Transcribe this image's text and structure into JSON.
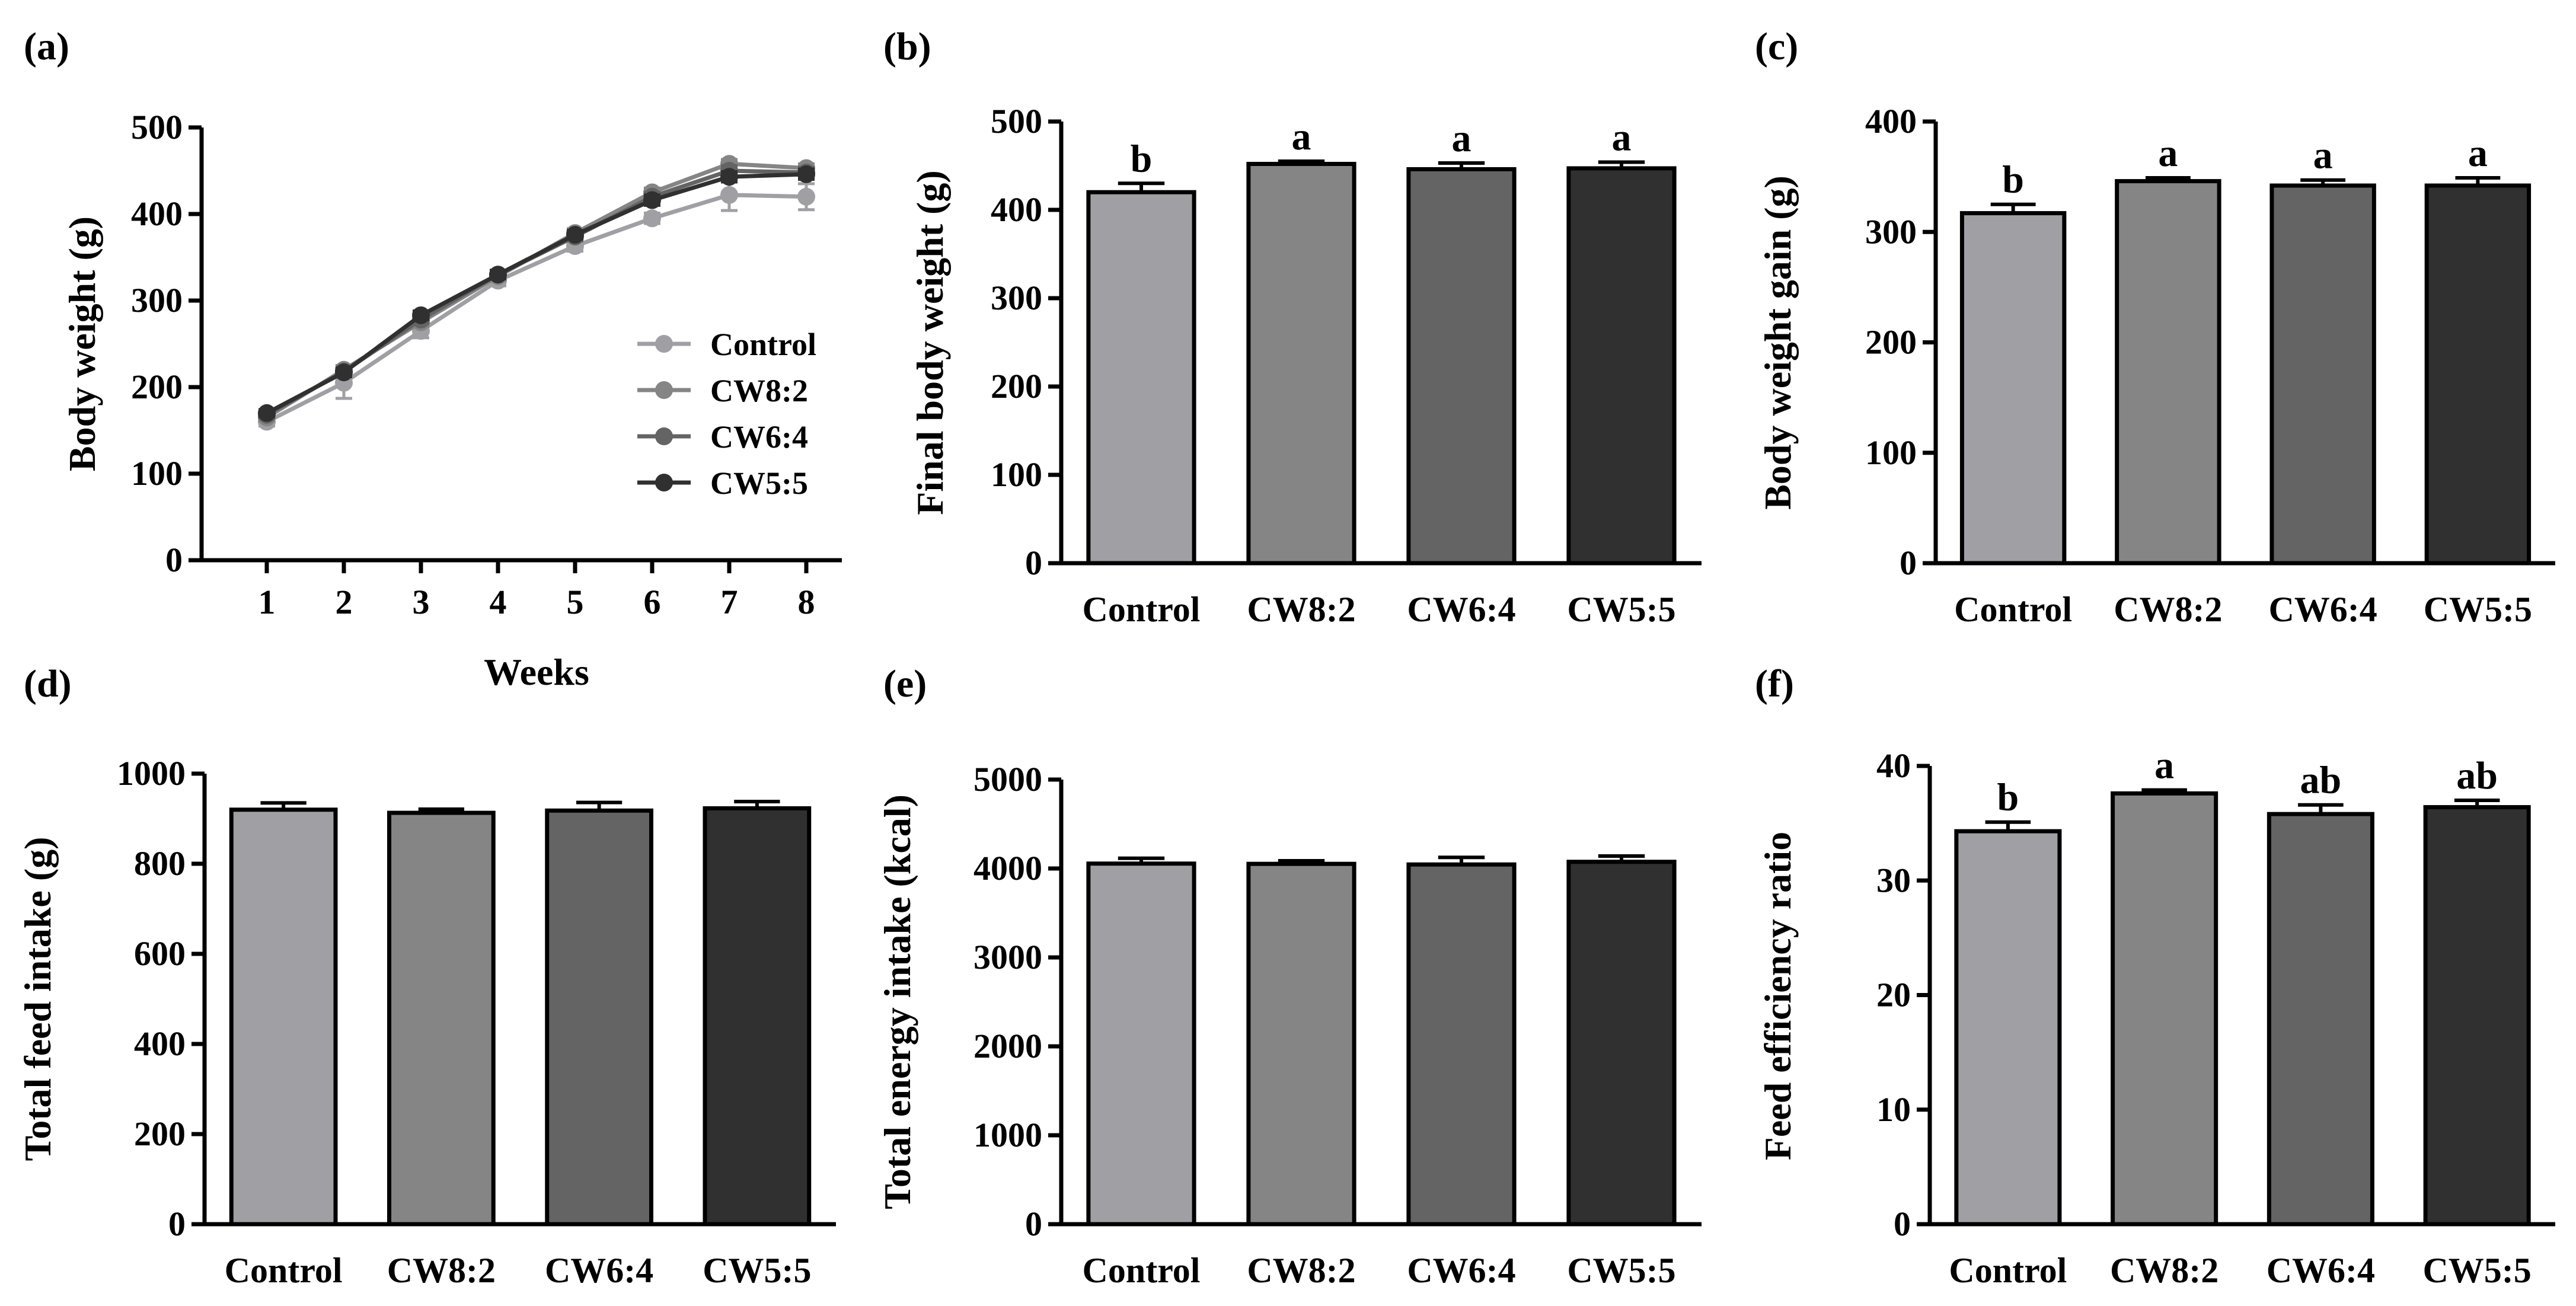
{
  "figure": {
    "panels": [
      {
        "label": "(a)"
      },
      {
        "label": "(b)"
      },
      {
        "label": "(c)"
      },
      {
        "label": "(d)"
      },
      {
        "label": "(e)"
      },
      {
        "label": "(f)"
      }
    ]
  },
  "chart_data": [
    {
      "type": "line",
      "panel": "(a)",
      "xlabel": "Weeks",
      "ylabel": "Body weight (g)",
      "categories": [
        "1",
        "2",
        "3",
        "4",
        "5",
        "6",
        "7",
        "8"
      ],
      "ylim": [
        0,
        500
      ],
      "yticks": [
        "0",
        "100",
        "200",
        "300",
        "400",
        "500"
      ],
      "legend_position": "center-right",
      "series": [
        {
          "name": "Control",
          "color": "#a0a0a4",
          "values": [
            160,
            205,
            265,
            323,
            363,
            395,
            422,
            420
          ],
          "errors": [
            5,
            18,
            8,
            6,
            6,
            6,
            18,
            15
          ]
        },
        {
          "name": "CW8:2",
          "color": "#858585",
          "values": [
            165,
            220,
            275,
            328,
            378,
            425,
            458,
            453
          ],
          "errors": [
            4,
            5,
            5,
            5,
            5,
            5,
            5,
            5
          ]
        },
        {
          "name": "CW6:4",
          "color": "#646464",
          "values": [
            168,
            218,
            278,
            330,
            374,
            420,
            450,
            448
          ],
          "errors": [
            4,
            5,
            5,
            5,
            5,
            5,
            6,
            6
          ]
        },
        {
          "name": "CW5:5",
          "color": "#303030",
          "values": [
            170,
            217,
            283,
            330,
            376,
            416,
            443,
            446
          ],
          "errors": [
            4,
            5,
            5,
            5,
            5,
            6,
            6,
            6
          ]
        }
      ]
    },
    {
      "type": "bar",
      "panel": "(b)",
      "ylabel": "Final body weight (g)",
      "categories": [
        "Control",
        "CW8:2",
        "CW6:4",
        "CW5:5"
      ],
      "colors": [
        "#a0a0a4",
        "#858585",
        "#646464",
        "#303030"
      ],
      "values": [
        420,
        452,
        446,
        447
      ],
      "errors": [
        10,
        3,
        7,
        7
      ],
      "annotations": [
        "b",
        "a",
        "a",
        "a"
      ],
      "ylim": [
        0,
        500
      ],
      "yticks": [
        "0",
        "100",
        "200",
        "300",
        "400",
        "500"
      ]
    },
    {
      "type": "bar",
      "panel": "(c)",
      "ylabel": "Body weight gain (g)",
      "categories": [
        "Control",
        "CW8:2",
        "CW6:4",
        "CW5:5"
      ],
      "colors": [
        "#a0a0a4",
        "#858585",
        "#646464",
        "#303030"
      ],
      "values": [
        317,
        346,
        342,
        342
      ],
      "errors": [
        8,
        3,
        5,
        7
      ],
      "annotations": [
        "b",
        "a",
        "a",
        "a"
      ],
      "ylim": [
        0,
        400
      ],
      "yticks": [
        "0",
        "100",
        "200",
        "300",
        "400"
      ]
    },
    {
      "type": "bar",
      "panel": "(d)",
      "ylabel": "Total feed intake (g)",
      "categories": [
        "Control",
        "CW8:2",
        "CW6:4",
        "CW5:5"
      ],
      "colors": [
        "#a0a0a4",
        "#858585",
        "#646464",
        "#303030"
      ],
      "values": [
        920,
        913,
        918,
        923
      ],
      "errors": [
        15,
        8,
        18,
        15
      ],
      "annotations": [
        "",
        "",
        "",
        ""
      ],
      "ylim": [
        0,
        1000
      ],
      "yticks": [
        "0",
        "200",
        "400",
        "600",
        "800",
        "1000"
      ]
    },
    {
      "type": "bar",
      "panel": "(e)",
      "ylabel": "Total energy intake (kcal)",
      "categories": [
        "Control",
        "CW8:2",
        "CW6:4",
        "CW5:5"
      ],
      "colors": [
        "#a0a0a4",
        "#858585",
        "#646464",
        "#303030"
      ],
      "values": [
        4055,
        4052,
        4045,
        4075
      ],
      "errors": [
        60,
        35,
        80,
        65
      ],
      "annotations": [
        "",
        "",
        "",
        ""
      ],
      "ylim": [
        0,
        5000
      ],
      "yticks": [
        "0",
        "1000",
        "2000",
        "3000",
        "4000",
        "5000"
      ]
    },
    {
      "type": "bar",
      "panel": "(f)",
      "ylabel": "Feed efficiency ratio",
      "categories": [
        "Control",
        "CW8:2",
        "CW6:4",
        "CW5:5"
      ],
      "colors": [
        "#a0a0a4",
        "#858585",
        "#646464",
        "#303030"
      ],
      "values": [
        34.3,
        37.6,
        35.8,
        36.4
      ],
      "errors": [
        0.8,
        0.3,
        0.8,
        0.6
      ],
      "annotations": [
        "b",
        "a",
        "ab",
        "ab"
      ],
      "ylim": [
        0,
        40
      ],
      "yticks": [
        "0",
        "10",
        "20",
        "30",
        "40"
      ]
    }
  ]
}
